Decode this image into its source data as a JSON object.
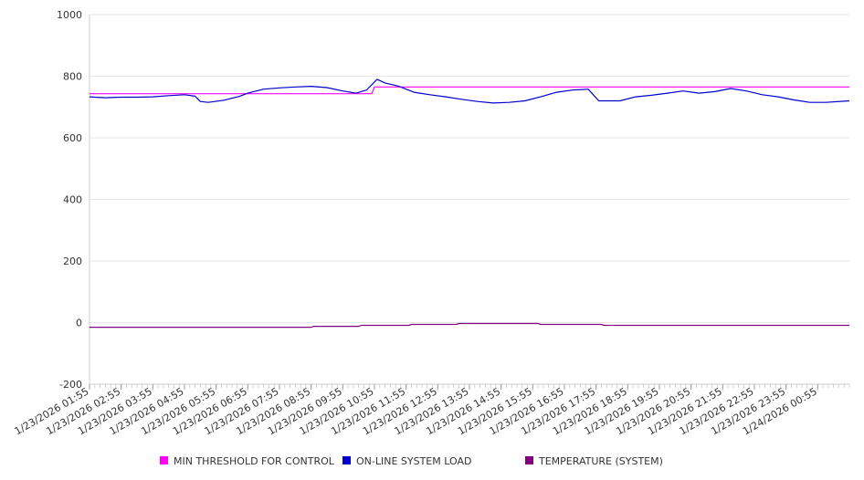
{
  "chart_data": {
    "type": "line",
    "title": "",
    "xlabel": "",
    "ylabel": "",
    "ylim": [
      -200,
      1000
    ],
    "yticks": [
      -200,
      0,
      200,
      400,
      600,
      800,
      1000
    ],
    "grid": true,
    "legend_position": "bottom",
    "x_start": "1/23/2026 01:55",
    "x_end": "1/24/2026 01:55",
    "x_tick_labels": [
      "1/23/2026 01:55",
      "1/23/2026 02:55",
      "1/23/2026 03:55",
      "1/23/2026 04:55",
      "1/23/2026 05:55",
      "1/23/2026 06:55",
      "1/23/2026 07:55",
      "1/23/2026 08:55",
      "1/23/2026 09:55",
      "1/23/2026 10:55",
      "1/23/2026 11:55",
      "1/23/2026 12:55",
      "1/23/2026 13:55",
      "1/23/2026 14:55",
      "1/23/2026 15:55",
      "1/23/2026 16:55",
      "1/23/2026 17:55",
      "1/23/2026 18:55",
      "1/23/2026 19:55",
      "1/23/2026 20:55",
      "1/23/2026 21:55",
      "1/23/2026 22:55",
      "1/23/2026 23:55",
      "1/24/2026 00:55"
    ],
    "series": [
      {
        "name": "MIN THRESHOLD FOR CONTROL",
        "color": "#ff00ff",
        "x": [
          "1/23/2026 01:55",
          "1/23/2026 10:50",
          "1/23/2026 10:55",
          "1/24/2026 01:55"
        ],
        "y": [
          743,
          743,
          765,
          765
        ]
      },
      {
        "name": "ON-LINE SYSTEM LOAD",
        "color": "#0000cc",
        "x": [
          "1/23/2026 01:55",
          "1/23/2026 02:25",
          "1/23/2026 02:55",
          "1/23/2026 03:25",
          "1/23/2026 03:55",
          "1/23/2026 04:25",
          "1/23/2026 04:55",
          "1/23/2026 05:15",
          "1/23/2026 05:25",
          "1/23/2026 05:40",
          "1/23/2026 06:10",
          "1/23/2026 06:40",
          "1/23/2026 06:55",
          "1/23/2026 07:25",
          "1/23/2026 07:55",
          "1/23/2026 08:25",
          "1/23/2026 08:55",
          "1/23/2026 09:25",
          "1/23/2026 09:55",
          "1/23/2026 10:20",
          "1/23/2026 10:40",
          "1/23/2026 11:00",
          "1/23/2026 11:15",
          "1/23/2026 11:40",
          "1/23/2026 12:10",
          "1/23/2026 12:40",
          "1/23/2026 13:10",
          "1/23/2026 13:40",
          "1/23/2026 14:10",
          "1/23/2026 14:40",
          "1/23/2026 15:10",
          "1/23/2026 15:40",
          "1/23/2026 16:10",
          "1/23/2026 16:40",
          "1/23/2026 17:10",
          "1/23/2026 17:40",
          "1/23/2026 18:00",
          "1/23/2026 18:10",
          "1/23/2026 18:40",
          "1/23/2026 19:10",
          "1/23/2026 19:40",
          "1/23/2026 20:10",
          "1/23/2026 20:40",
          "1/23/2026 21:10",
          "1/23/2026 21:40",
          "1/23/2026 22:10",
          "1/23/2026 22:40",
          "1/23/2026 23:10",
          "1/23/2026 23:40",
          "1/24/2026 00:10",
          "1/24/2026 00:40",
          "1/24/2026 01:10",
          "1/24/2026 01:55"
        ],
        "y": [
          733,
          730,
          732,
          732,
          733,
          737,
          740,
          735,
          718,
          715,
          722,
          735,
          745,
          758,
          762,
          765,
          767,
          763,
          752,
          745,
          755,
          790,
          778,
          768,
          748,
          740,
          733,
          725,
          718,
          713,
          715,
          720,
          733,
          748,
          755,
          758,
          720,
          720,
          720,
          733,
          738,
          745,
          752,
          745,
          750,
          760,
          752,
          740,
          733,
          723,
          715,
          715,
          720
        ]
      },
      {
        "name": "TEMPERATURE (SYSTEM)",
        "color": "#800080",
        "x": [
          "1/23/2026 01:55",
          "1/23/2026 08:55",
          "1/23/2026 09:00",
          "1/23/2026 10:25",
          "1/23/2026 10:30",
          "1/23/2026 12:00",
          "1/23/2026 12:05",
          "1/23/2026 13:30",
          "1/23/2026 13:35",
          "1/23/2026 16:05",
          "1/23/2026 16:10",
          "1/23/2026 18:05",
          "1/23/2026 18:10",
          "1/24/2026 01:55"
        ],
        "y": [
          -15,
          -15,
          -12,
          -12,
          -9,
          -9,
          -6,
          -6,
          -3,
          -3,
          -6,
          -6,
          -9,
          -9
        ]
      }
    ]
  }
}
